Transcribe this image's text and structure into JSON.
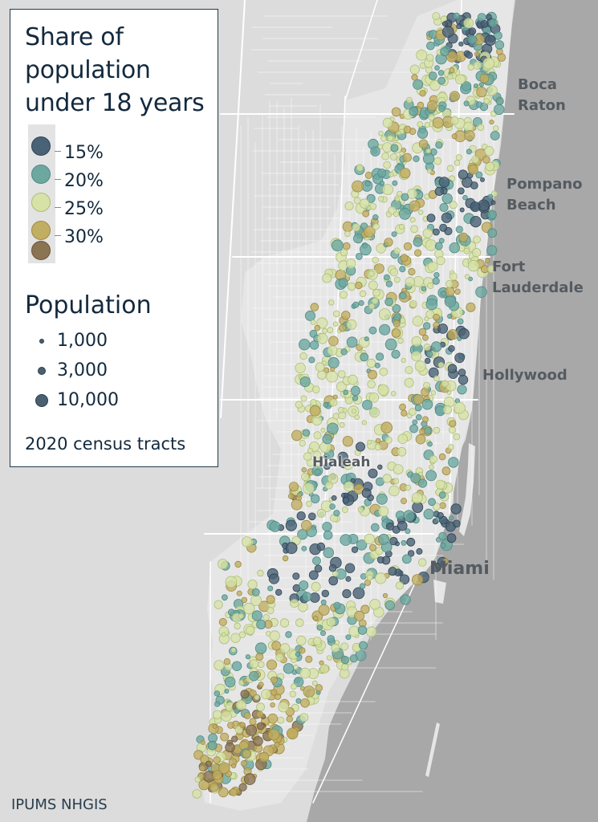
{
  "legend": {
    "title_lines": [
      "Share of",
      "population",
      "under 18 years"
    ],
    "share_categories": [
      {
        "label": "15%",
        "color": "#4a6276"
      },
      {
        "label": "20%",
        "color": "#6da8a0"
      },
      {
        "label": "25%",
        "color": "#d7e2a7"
      },
      {
        "label": "30%",
        "color": "#c2ae62"
      },
      {
        "label": "",
        "color": "#8b7451"
      }
    ],
    "population_title": "Population",
    "population_sizes": [
      {
        "label": "1,000"
      },
      {
        "label": "3,000"
      },
      {
        "label": "10,000"
      }
    ],
    "note": "2020 census tracts"
  },
  "cities": {
    "boca_raton": [
      "Boca",
      "Raton"
    ],
    "pompano_beach": [
      "Pompano",
      "Beach"
    ],
    "fort_lauderdale": [
      "Fort",
      "Lauderdale"
    ],
    "hollywood": "Hollywood",
    "hialeah": "Hialeah",
    "miami": "Miami"
  },
  "source": "IPUMS NHGIS",
  "colors": {
    "ocean": "#a8a8a8",
    "land": "#dcdcdc",
    "urban": "#e6e6e6",
    "roads": "#ffffff",
    "share_15": "#4a6276",
    "share_20": "#6da8a0",
    "share_25": "#d7e2a7",
    "share_30": "#c2ae62",
    "share_35": "#8b7451"
  }
}
